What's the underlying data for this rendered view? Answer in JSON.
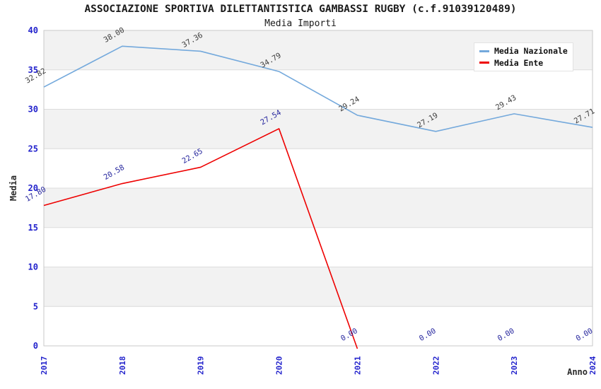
{
  "header": {
    "title": "ASSOCIAZIONE SPORTIVA DILETTANTISTICA GAMBASSI RUGBY (c.f.91039120489)",
    "subtitle": "Media Importi"
  },
  "axes": {
    "y_label": "Media",
    "x_label": "Anno"
  },
  "colors": {
    "band_gray": "#f2f2f2",
    "grid": "#dcdcdc",
    "axis_border": "#c9c9c9",
    "tick_blue": "#2222cc",
    "label_dark": "#3d3d3d",
    "label_navy": "#26269e",
    "nazionale_blue": "#74a9dc",
    "ente_red": "#ee0000"
  },
  "chart_data": {
    "type": "line",
    "title": "ASSOCIAZIONE SPORTIVA DILETTANTISTICA GAMBASSI RUGBY (c.f.91039120489)",
    "subtitle": "Media Importi",
    "xlabel": "Anno",
    "ylabel": "Media",
    "ylim": [
      0,
      40
    ],
    "y_ticks": [
      0,
      5,
      10,
      15,
      20,
      25,
      30,
      35,
      40
    ],
    "x": [
      "2017",
      "2018",
      "2019",
      "2020",
      "2021",
      "2022",
      "2023",
      "2024"
    ],
    "grid": "horizontal-bands-alternating",
    "legend_position": "top-right-inside",
    "point_label_format": "2-decimals",
    "series": [
      {
        "name": "Media Nazionale",
        "color": "#74a9dc",
        "label_color": "#3d3d3d",
        "values": [
          32.82,
          38.0,
          37.36,
          34.79,
          29.24,
          27.19,
          29.43,
          27.71
        ]
      },
      {
        "name": "Media Ente",
        "color": "#ee0000",
        "label_color": "#26269e",
        "values": [
          17.8,
          20.58,
          22.65,
          27.54,
          0.0,
          0.0,
          0.0,
          0.0
        ],
        "line_points": 5
      }
    ]
  }
}
